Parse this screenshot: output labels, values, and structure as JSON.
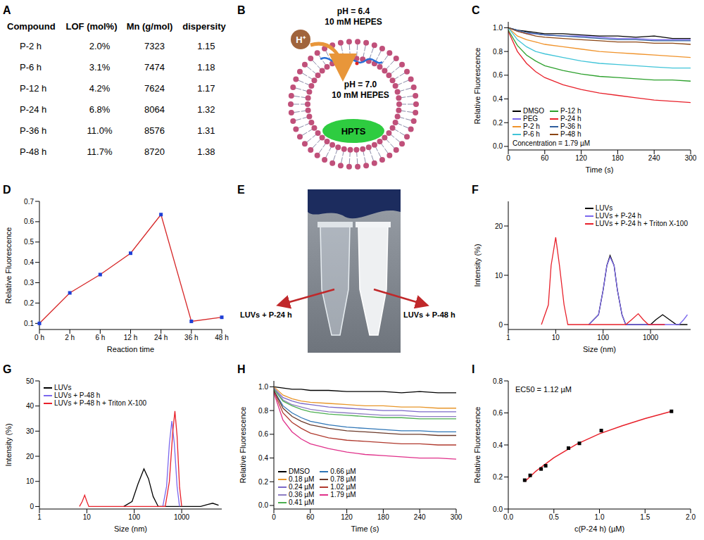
{
  "table": {
    "panel": "A",
    "header": [
      "Compound",
      "LOF (mol%)",
      "Mn (g/mol)",
      "dispersity"
    ],
    "rows": [
      [
        "P-2 h",
        "2.0%",
        "7323",
        "1.15"
      ],
      [
        "P-6 h",
        "3.1%",
        "7474",
        "1.18"
      ],
      [
        "P-12 h",
        "4.2%",
        "7624",
        "1.17"
      ],
      [
        "P-24 h",
        "6.8%",
        "8064",
        "1.32"
      ],
      [
        "P-36 h",
        "11.0%",
        "8576",
        "1.31"
      ],
      [
        "P-48 h",
        "11.7%",
        "8720",
        "1.38"
      ]
    ]
  },
  "diagram": {
    "panel": "B",
    "outside_labels": [
      "pH = 6.4",
      "10 mM HEPES"
    ],
    "ion": "H⁺",
    "inside_labels": [
      "pH = 7.0",
      "10 mM HEPES"
    ],
    "dye": "HPTS"
  },
  "photo": {
    "panel": "E",
    "labels": [
      "LUVs + P-24 h",
      "LUVs + P-48 h"
    ]
  },
  "chart_data": [
    {
      "panel": "C",
      "type": "line",
      "x_label": "Time (s)",
      "y_label": "Relative Fluorescence",
      "annotation": "Concentration = 1.79 µM",
      "legend": "lower left",
      "x": [
        0,
        15,
        30,
        45,
        60,
        90,
        120,
        150,
        180,
        210,
        240,
        270,
        300
      ],
      "xlim": [
        0,
        300
      ],
      "xticks": [
        0,
        60,
        120,
        180,
        240,
        300
      ],
      "ylim": [
        -0.03,
        1.05
      ],
      "yticks": [
        {
          "value": 0,
          "label": "0.0"
        },
        {
          "value": 0.2,
          "label": "0.2"
        },
        {
          "value": 0.4,
          "label": "0.4"
        },
        {
          "value": 0.6,
          "label": "0.6"
        },
        {
          "value": 0.8,
          "label": "0.8"
        },
        {
          "value": 1,
          "label": "1.0"
        }
      ],
      "series": [
        {
          "name": "DMSO",
          "color": "#000000",
          "values": [
            1.0,
            0.98,
            0.97,
            0.96,
            0.95,
            0.95,
            0.94,
            0.93,
            0.93,
            0.92,
            0.93,
            0.91,
            0.91
          ]
        },
        {
          "name": "PEG",
          "color": "#7b68ee",
          "values": [
            1.0,
            0.97,
            0.95,
            0.95,
            0.94,
            0.93,
            0.93,
            0.92,
            0.91,
            0.91,
            0.9,
            0.9,
            0.9
          ]
        },
        {
          "name": "P-2 h",
          "color": "#f0932b",
          "values": [
            1.0,
            0.93,
            0.9,
            0.88,
            0.86,
            0.84,
            0.82,
            0.8,
            0.79,
            0.78,
            0.77,
            0.76,
            0.75
          ]
        },
        {
          "name": "P-6 h",
          "color": "#40c4d8",
          "values": [
            1.0,
            0.9,
            0.84,
            0.8,
            0.78,
            0.75,
            0.72,
            0.7,
            0.69,
            0.68,
            0.67,
            0.66,
            0.66
          ]
        },
        {
          "name": "P-12 h",
          "color": "#2ca02c",
          "values": [
            0.98,
            0.85,
            0.77,
            0.72,
            0.68,
            0.64,
            0.61,
            0.59,
            0.58,
            0.57,
            0.56,
            0.56,
            0.55
          ]
        },
        {
          "name": "P-24 h",
          "color": "#e8202a",
          "values": [
            0.97,
            0.8,
            0.7,
            0.63,
            0.58,
            0.52,
            0.48,
            0.45,
            0.43,
            0.41,
            0.39,
            0.38,
            0.37
          ]
        },
        {
          "name": "P-36 h",
          "color": "#2f5d9e",
          "values": [
            1.0,
            0.98,
            0.96,
            0.95,
            0.94,
            0.93,
            0.92,
            0.91,
            0.9,
            0.9,
            0.89,
            0.89,
            0.89
          ]
        },
        {
          "name": "P-48 h",
          "color": "#8b4513",
          "values": [
            1.0,
            0.97,
            0.95,
            0.93,
            0.92,
            0.91,
            0.9,
            0.89,
            0.88,
            0.88,
            0.87,
            0.87,
            0.86
          ]
        }
      ]
    },
    {
      "panel": "D",
      "type": "line",
      "marker": "square",
      "color": "#d62728",
      "x_label": "Reaction time",
      "y_label": "Relative Fluorescence",
      "categories": [
        "0 h",
        "2 h",
        "6 h",
        "12 h",
        "24 h",
        "36 h",
        "48 h"
      ],
      "values": [
        0.1,
        0.25,
        0.34,
        0.445,
        0.635,
        0.11,
        0.13
      ],
      "ylim": [
        0.07,
        0.7
      ],
      "yticks": [
        0.1,
        0.2,
        0.3,
        0.4,
        0.5,
        0.6,
        0.7
      ]
    },
    {
      "panel": "F",
      "type": "line",
      "log": "x",
      "x_label": "Size (nm)",
      "y_label": "Intensity (%)",
      "legend": "upper right",
      "xlim": [
        1,
        7000
      ],
      "xticks": [
        1,
        10,
        100,
        1000
      ],
      "ylim": [
        -1,
        25
      ],
      "yticks": [
        0,
        10,
        20
      ],
      "series": [
        {
          "name": "LUVs",
          "color": "#000000",
          "x": [
            50,
            80,
            100,
            120,
            140,
            170,
            200,
            250,
            300,
            1000,
            1300,
            1800,
            2500,
            3500,
            6000
          ],
          "values": [
            0,
            2,
            7,
            12,
            14,
            12,
            7,
            2,
            0,
            0,
            1,
            2,
            1,
            0,
            0
          ]
        },
        {
          "name": "LUVs + P-24 h",
          "color": "#7b68ee",
          "x": [
            50,
            80,
            100,
            120,
            140,
            170,
            200,
            250,
            300,
            4000,
            5000,
            6000
          ],
          "values": [
            0,
            2,
            7,
            12,
            13.7,
            12,
            7,
            2,
            0,
            0,
            1,
            2
          ]
        },
        {
          "name": "LUVs + P-24 h + Triton X-100",
          "color": "#e8202a",
          "x": [
            5,
            7,
            8,
            10,
            12,
            15,
            18,
            300,
            400,
            550,
            700,
            900,
            2000
          ],
          "values": [
            0,
            4,
            12,
            17.7,
            12,
            4,
            0,
            0,
            1,
            2.2,
            1,
            0,
            0
          ]
        }
      ]
    },
    {
      "panel": "G",
      "type": "line",
      "log": "x",
      "x_label": "Size (nm)",
      "y_label": "Intensity (%)",
      "legend": "upper left",
      "xlim": [
        1,
        7000
      ],
      "xticks": [
        1,
        10,
        100,
        1000
      ],
      "ylim": [
        -1,
        50
      ],
      "yticks": [
        0,
        10,
        20,
        30,
        40,
        50
      ],
      "series": [
        {
          "name": "LUVs",
          "color": "#000000",
          "x": [
            60,
            90,
            120,
            160,
            200,
            250,
            320,
            2500,
            3500,
            4500,
            6000
          ],
          "values": [
            0,
            2,
            9,
            15,
            11,
            4,
            0,
            0,
            0.8,
            1.3,
            0.5
          ]
        },
        {
          "name": "LUVs + P-48 h",
          "color": "#7b68ee",
          "x": [
            400,
            480,
            550,
            620,
            700,
            800,
            900
          ],
          "values": [
            0,
            8,
            25,
            34,
            25,
            8,
            0
          ]
        },
        {
          "name": "LUVs + P-48 h + Triton X-100",
          "color": "#e8202a",
          "x": [
            7,
            8,
            9,
            10,
            11,
            450,
            550,
            650,
            720,
            800,
            900,
            1000
          ],
          "values": [
            0,
            2,
            4.5,
            2,
            0,
            0,
            10,
            30,
            38,
            28,
            8,
            0
          ]
        }
      ]
    },
    {
      "panel": "H",
      "type": "line",
      "x_label": "Time (s)",
      "y_label": "Relative Fluorescence",
      "legend": "lower left",
      "x": [
        0,
        15,
        30,
        45,
        60,
        90,
        120,
        150,
        180,
        210,
        240,
        270,
        300
      ],
      "xlim": [
        0,
        300
      ],
      "xticks": [
        0,
        60,
        120,
        180,
        240,
        300
      ],
      "ylim": [
        -0.03,
        1.05
      ],
      "yticks": [
        {
          "value": 0,
          "label": "0.0"
        },
        {
          "value": 0.2,
          "label": "0.2"
        },
        {
          "value": 0.4,
          "label": "0.4"
        },
        {
          "value": 0.6,
          "label": "0.6"
        },
        {
          "value": 0.8,
          "label": "0.8"
        },
        {
          "value": 1,
          "label": "1.0"
        }
      ],
      "series": [
        {
          "name": "DMSO",
          "color": "#000000",
          "values": [
            1.0,
            0.99,
            0.98,
            0.98,
            0.97,
            0.97,
            0.96,
            0.96,
            0.96,
            0.95,
            0.96,
            0.95,
            0.95
          ]
        },
        {
          "name": "0.18 µM",
          "color": "#e8962a",
          "values": [
            1.0,
            0.93,
            0.9,
            0.88,
            0.87,
            0.86,
            0.85,
            0.84,
            0.84,
            0.83,
            0.83,
            0.82,
            0.82
          ]
        },
        {
          "name": "0.24 µM",
          "color": "#7b68c8",
          "values": [
            0.99,
            0.91,
            0.88,
            0.86,
            0.85,
            0.83,
            0.82,
            0.81,
            0.8,
            0.8,
            0.79,
            0.79,
            0.79
          ]
        },
        {
          "name": "0.36 µM",
          "color": "#8e7cc3",
          "values": [
            0.99,
            0.89,
            0.85,
            0.83,
            0.81,
            0.79,
            0.78,
            0.77,
            0.76,
            0.76,
            0.75,
            0.75,
            0.75
          ]
        },
        {
          "name": "0.41 µM",
          "color": "#4caf50",
          "values": [
            0.98,
            0.88,
            0.84,
            0.81,
            0.79,
            0.77,
            0.76,
            0.75,
            0.74,
            0.74,
            0.73,
            0.73,
            0.73
          ]
        },
        {
          "name": "0.66 µM",
          "color": "#2e75b6",
          "values": [
            0.97,
            0.84,
            0.78,
            0.74,
            0.71,
            0.68,
            0.66,
            0.65,
            0.64,
            0.63,
            0.63,
            0.62,
            0.62
          ]
        },
        {
          "name": "0.78 µM",
          "color": "#6b3a2a",
          "values": [
            0.97,
            0.82,
            0.75,
            0.71,
            0.68,
            0.65,
            0.63,
            0.62,
            0.61,
            0.6,
            0.6,
            0.59,
            0.59
          ]
        },
        {
          "name": "1.02 µM",
          "color": "#b03a2e",
          "values": [
            0.96,
            0.78,
            0.7,
            0.65,
            0.61,
            0.57,
            0.55,
            0.54,
            0.53,
            0.52,
            0.52,
            0.51,
            0.51
          ]
        },
        {
          "name": "1.79 µM",
          "color": "#e0308a",
          "values": [
            0.95,
            0.72,
            0.62,
            0.56,
            0.52,
            0.48,
            0.45,
            0.43,
            0.42,
            0.41,
            0.4,
            0.4,
            0.39
          ]
        }
      ]
    },
    {
      "panel": "I",
      "type": "scatter",
      "marker": "square",
      "color": "#000000",
      "x_label": "c(P-24 h) (µM)",
      "y_label": "Relative Fluorescence",
      "annotation": "EC50 = 1.12 µM",
      "x": [
        0.18,
        0.24,
        0.36,
        0.41,
        0.66,
        0.78,
        1.02,
        1.79
      ],
      "values": [
        0.18,
        0.21,
        0.25,
        0.27,
        0.38,
        0.41,
        0.49,
        0.61
      ],
      "fit": {
        "color": "#e8202a",
        "x": [
          0.18,
          0.3,
          0.5,
          0.75,
          1.0,
          1.25,
          1.5,
          1.79
        ],
        "values": [
          0.17,
          0.235,
          0.32,
          0.405,
          0.47,
          0.52,
          0.565,
          0.61
        ]
      },
      "xlim": [
        0,
        2
      ],
      "xticks": [
        {
          "value": 0,
          "label": "0.0"
        },
        {
          "value": 0.5,
          "label": "0.5"
        },
        {
          "value": 1,
          "label": "1.0"
        },
        {
          "value": 1.5,
          "label": "1.5"
        },
        {
          "value": 2,
          "label": "2.0"
        }
      ],
      "ylim": [
        0,
        0.8
      ],
      "yticks": [
        {
          "value": 0,
          "label": "0.0"
        },
        {
          "value": 0.2,
          "label": "0.2"
        },
        {
          "value": 0.4,
          "label": "0.4"
        },
        {
          "value": 0.6,
          "label": "0.6"
        },
        {
          "value": 0.8,
          "label": "0.8"
        }
      ]
    }
  ]
}
